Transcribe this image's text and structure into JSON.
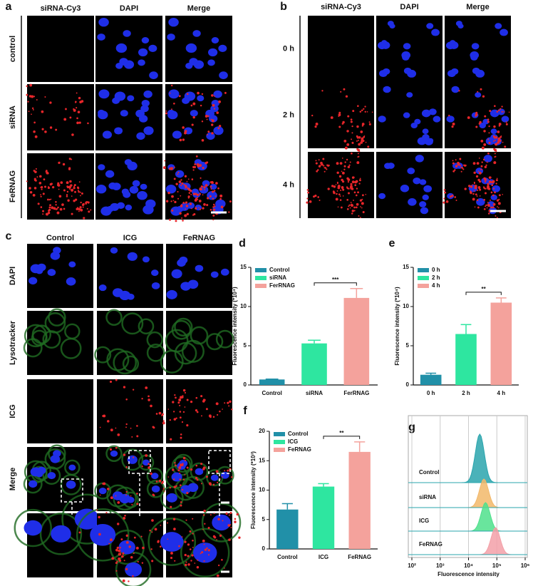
{
  "panels": {
    "a": {
      "label": "a",
      "columns": [
        "siRNA-Cy3",
        "DAPI",
        "Merge"
      ],
      "rows": [
        "control",
        "siRNA",
        "FeRNAG"
      ]
    },
    "b": {
      "label": "b",
      "columns": [
        "siRNA-Cy3",
        "DAPI",
        "Merge"
      ],
      "rows": [
        "0 h",
        "2 h",
        "4 h"
      ]
    },
    "c": {
      "label": "c",
      "columns": [
        "Control",
        "ICG",
        "FeRNAG"
      ],
      "rows": [
        "DAPI",
        "Lysotracker",
        "ICG",
        "Merge"
      ]
    }
  },
  "chart_data": [
    {
      "type": "bar",
      "panel_label": "d",
      "ylabel": "Fluorescence intensity (*10⁴)",
      "categories": [
        "Control",
        "siRNA",
        "FerRNAG"
      ],
      "series": [
        {
          "name": "Control",
          "color": "#2190a8",
          "values": [
            0.7,
            null,
            null
          ],
          "errors": [
            0.05,
            null,
            null
          ]
        },
        {
          "name": "siRNA",
          "color": "#2ee6a0",
          "values": [
            null,
            5.3,
            null
          ],
          "errors": [
            null,
            0.4,
            null
          ]
        },
        {
          "name": "FerRNAG",
          "color": "#f4a29c",
          "values": [
            null,
            null,
            11.1
          ],
          "errors": [
            null,
            null,
            1.2
          ]
        }
      ],
      "ylim": [
        0,
        15
      ],
      "yticks": [
        0,
        5,
        10,
        15
      ],
      "legend": "upper left",
      "annotation": "***"
    },
    {
      "type": "bar",
      "panel_label": "e",
      "ylabel": "Fluorescence intensity (*10⁴)",
      "categories": [
        "0 h",
        "2 h",
        "4 h"
      ],
      "series": [
        {
          "name": "0 h",
          "color": "#2190a8",
          "values": [
            1.3,
            null,
            null
          ],
          "errors": [
            0.2,
            null,
            null
          ]
        },
        {
          "name": "2 h",
          "color": "#2ee6a0",
          "values": [
            null,
            6.5,
            null
          ],
          "errors": [
            null,
            1.2,
            null
          ]
        },
        {
          "name": "4 h",
          "color": "#f4a29c",
          "values": [
            null,
            null,
            10.5
          ],
          "errors": [
            null,
            null,
            0.6
          ]
        }
      ],
      "ylim": [
        0,
        15
      ],
      "yticks": [
        0,
        5,
        10,
        15
      ],
      "legend": "upper left",
      "annotation": "**"
    },
    {
      "type": "bar",
      "panel_label": "f",
      "ylabel": "Fluorescence intensity (*10³)",
      "categories": [
        "Control",
        "ICG",
        "FeRNAG"
      ],
      "series": [
        {
          "name": "Control",
          "color": "#2190a8",
          "values": [
            6.7,
            null,
            null
          ],
          "errors": [
            1.0,
            null,
            null
          ]
        },
        {
          "name": "ICG",
          "color": "#2ee6a0",
          "values": [
            null,
            10.6,
            null
          ],
          "errors": [
            null,
            0.5,
            null
          ]
        },
        {
          "name": "FeRNAG",
          "color": "#f4a29c",
          "values": [
            null,
            null,
            16.5
          ],
          "errors": [
            null,
            null,
            1.7
          ]
        }
      ],
      "ylim": [
        0,
        20
      ],
      "yticks": [
        0,
        5,
        10,
        15,
        20
      ],
      "legend": "upper left",
      "annotation": "**"
    },
    {
      "type": "ridgeline",
      "panel_label": "g",
      "xlabel": "Fluorescence intensity",
      "log_x": true,
      "grid": true,
      "xlim": [
        100,
        1000000
      ],
      "xticks": [
        {
          "value": 100,
          "label": "10²"
        },
        {
          "value": 1000,
          "label": "10³"
        },
        {
          "value": 10000,
          "label": "10⁴"
        },
        {
          "value": 100000,
          "label": "10⁵"
        },
        {
          "value": 1000000,
          "label": "10⁶"
        }
      ],
      "series": [
        {
          "name": "Control",
          "color": "#2aa5ad",
          "peak": 25000
        },
        {
          "name": "siRNA",
          "color": "#f2b86a",
          "peak": 35000
        },
        {
          "name": "ICG",
          "color": "#4fe08c",
          "peak": 40000
        },
        {
          "name": "FeRNAG",
          "color": "#f3a0a8",
          "peak": 90000
        }
      ]
    }
  ]
}
